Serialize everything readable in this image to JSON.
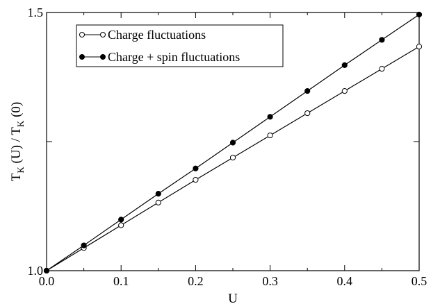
{
  "chart_data": {
    "type": "line",
    "xlabel": "U",
    "ylabel": {
      "parts": [
        "T",
        "K",
        " (U) / T",
        "K",
        " (0)"
      ]
    },
    "xlim": [
      0.0,
      0.5
    ],
    "ylim": [
      1.0,
      1.5
    ],
    "x_ticks": [
      "0.0",
      "0.1",
      "0.2",
      "0.3",
      "0.4",
      "0.5"
    ],
    "y_ticks": [
      "1.0",
      "1.5"
    ],
    "grid": false,
    "legend_position": "top-left",
    "x": [
      0.0,
      0.05,
      0.1,
      0.15,
      0.2,
      0.25,
      0.3,
      0.35,
      0.4,
      0.45,
      0.5
    ],
    "series": [
      {
        "name": "Charge fluctuations",
        "marker": "open-circle",
        "values": [
          1.0,
          1.044,
          1.088,
          1.132,
          1.176,
          1.219,
          1.262,
          1.305,
          1.348,
          1.391,
          1.434
        ]
      },
      {
        "name": "Charge + spin fluctuations",
        "marker": "filled-circle",
        "values": [
          1.0,
          1.049,
          1.099,
          1.149,
          1.198,
          1.248,
          1.298,
          1.348,
          1.398,
          1.447,
          1.496
        ]
      }
    ]
  }
}
